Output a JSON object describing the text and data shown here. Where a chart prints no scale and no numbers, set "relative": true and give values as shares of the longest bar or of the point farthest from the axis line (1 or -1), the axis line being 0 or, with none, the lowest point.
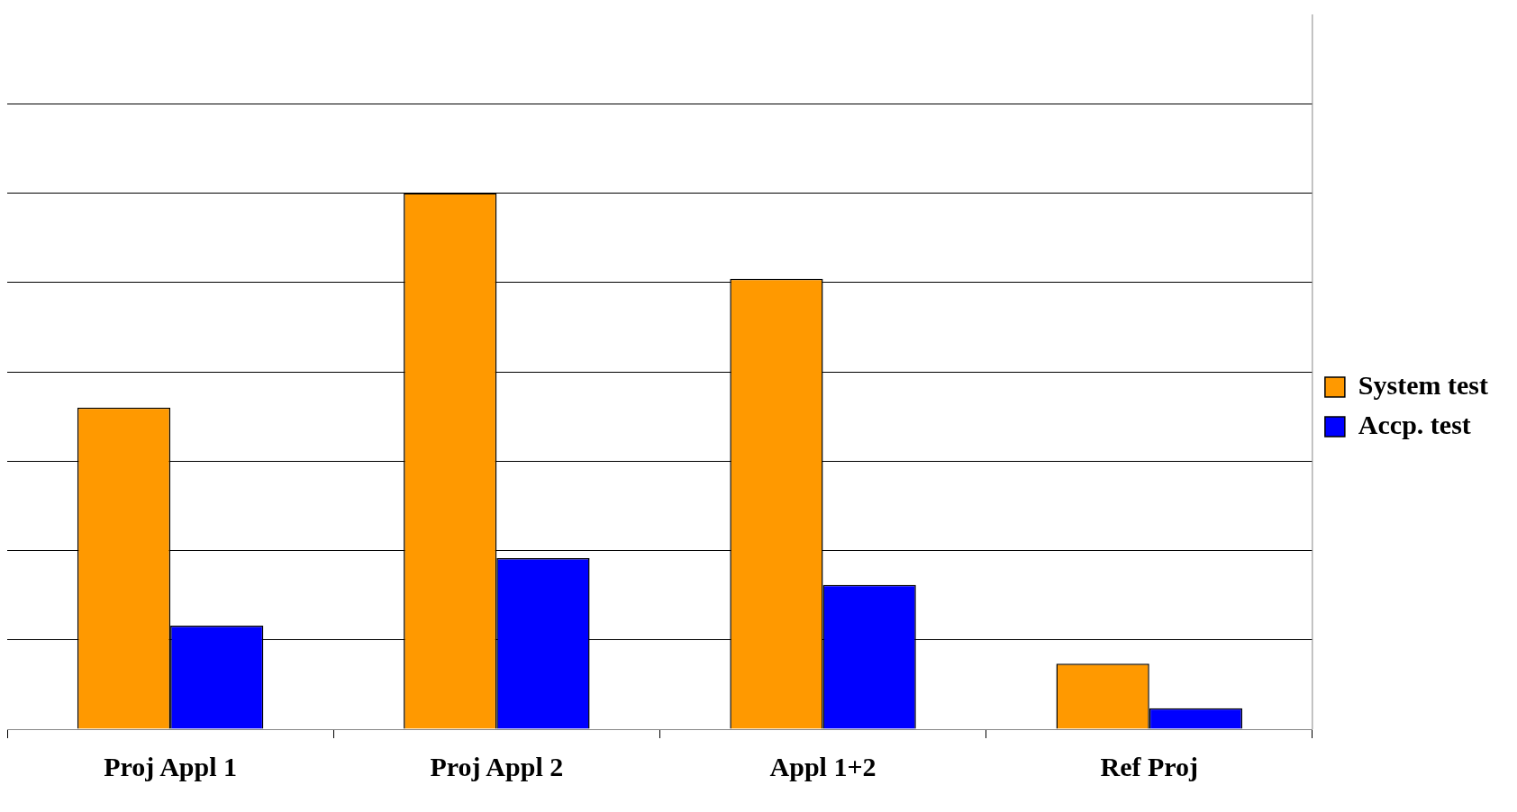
{
  "chart_data": {
    "type": "bar",
    "relative": true,
    "categories": [
      "Proj Appl 1",
      "Proj Appl 2",
      "Appl 1+2",
      "Ref Proj"
    ],
    "series": [
      {
        "name": "System test",
        "color": "#ff9900",
        "values": [
          0.6,
          1,
          0.84,
          0.122
        ]
      },
      {
        "name": "Accp. test",
        "color": "#0000ff",
        "values": [
          0.193,
          0.319,
          0.269,
          0.039
        ]
      }
    ],
    "grid": "y",
    "legend": "right"
  }
}
